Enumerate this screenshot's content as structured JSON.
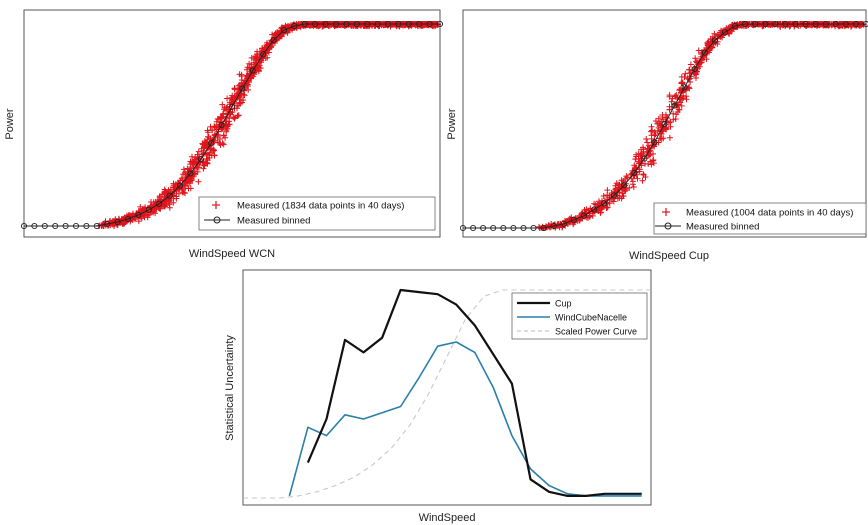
{
  "chart_data": [
    {
      "type": "scatter",
      "xlabel": "WindSpeed WCN",
      "ylabel": "Power",
      "legend_position": "bottom-right",
      "grid": false,
      "x_ticks_labeled": false,
      "y_ticks_labeled": false,
      "series": [
        {
          "name": "Measured (1834 data points in 40 days)",
          "marker": "+",
          "color": "#e0141c",
          "kind": "scatter"
        },
        {
          "name": "Measured binned",
          "marker": "o",
          "color": "#222222",
          "kind": "line"
        }
      ],
      "binned_curve": {
        "x": [
          0,
          0.5,
          1,
          1.5,
          2,
          2.5,
          3,
          3.5,
          4,
          4.5,
          5,
          5.5,
          6,
          6.5,
          7,
          7.5,
          8,
          8.5,
          9,
          9.5,
          10,
          10.5,
          11,
          11.5,
          12,
          12.5,
          13,
          13.5,
          14,
          14.5,
          15,
          15.5,
          16,
          16.5,
          17,
          17.5,
          18,
          18.5,
          19,
          19.5,
          20
        ],
        "y": [
          0,
          0,
          0,
          0,
          0,
          0,
          0,
          0,
          0.01,
          0.02,
          0.035,
          0.055,
          0.08,
          0.11,
          0.15,
          0.2,
          0.26,
          0.33,
          0.41,
          0.5,
          0.59,
          0.68,
          0.77,
          0.85,
          0.92,
          0.97,
          0.99,
          1,
          1,
          1,
          1,
          1,
          1,
          1,
          1,
          1,
          1,
          1,
          1,
          1,
          1
        ],
        "xlim": [
          0,
          20
        ],
        "ylim": [
          -0.02,
          1.04
        ]
      }
    },
    {
      "type": "scatter",
      "xlabel": "WindSpeed Cup",
      "ylabel": "Power",
      "legend_position": "bottom-right",
      "grid": false,
      "x_ticks_labeled": false,
      "y_ticks_labeled": false,
      "series": [
        {
          "name": "Measured (1004 data points in 40 days)",
          "marker": "+",
          "color": "#e0141c",
          "kind": "scatter"
        },
        {
          "name": "Measured binned",
          "marker": "o",
          "color": "#222222",
          "kind": "line"
        }
      ],
      "binned_curve": {
        "x": [
          0,
          0.5,
          1,
          1.5,
          2,
          2.5,
          3,
          3.5,
          4,
          4.5,
          5,
          5.5,
          6,
          6.5,
          7,
          7.5,
          8,
          8.5,
          9,
          9.5,
          10,
          10.5,
          11,
          11.5,
          12,
          12.5,
          13,
          13.5,
          14,
          14.5,
          15,
          15.5,
          16,
          16.5,
          17,
          17.5,
          18,
          18.5,
          19,
          19.5,
          20
        ],
        "y": [
          0,
          0,
          0,
          0,
          0,
          0,
          0,
          0,
          0,
          0.01,
          0.02,
          0.04,
          0.06,
          0.09,
          0.12,
          0.16,
          0.21,
          0.27,
          0.34,
          0.42,
          0.51,
          0.6,
          0.69,
          0.78,
          0.86,
          0.92,
          0.96,
          0.99,
          1,
          1,
          1,
          1,
          1,
          1,
          1,
          1,
          1,
          1,
          1,
          1,
          1
        ],
        "xlim": [
          0,
          20
        ],
        "ylim": [
          -0.02,
          1.04
        ]
      }
    },
    {
      "type": "line",
      "xlabel": "WindSpeed",
      "ylabel": "Statistical Uncertainty",
      "legend_position": "top-right",
      "grid": false,
      "x_ticks_labeled": false,
      "y_ticks_labeled": false,
      "xlim": [
        0,
        22
      ],
      "ylim": [
        0,
        1
      ],
      "series": [
        {
          "name": "Cup",
          "color": "#111111",
          "style": "solid",
          "x": [
            3.5,
            4.5,
            5.5,
            6.5,
            7.5,
            8.5,
            9.5,
            10.5,
            11.5,
            12.5,
            13.5,
            14.5,
            15.5,
            16.5,
            17.5,
            18.5,
            19.5,
            20.5,
            21.5
          ],
          "y": [
            0.17,
            0.38,
            0.76,
            0.7,
            0.77,
            1.0,
            0.99,
            0.98,
            0.93,
            0.83,
            0.69,
            0.55,
            0.09,
            0.03,
            0.01,
            0.01,
            0.02,
            0.02,
            0.02
          ]
        },
        {
          "name": "WindCubeNacelle",
          "color": "#2a7fab",
          "style": "solid",
          "x": [
            2.5,
            3.5,
            4.5,
            5.5,
            6.5,
            7.5,
            8.5,
            9.5,
            10.5,
            11.5,
            12.5,
            13.5,
            14.5,
            15.5,
            16.5,
            17.5,
            18.5,
            19.5,
            20.5,
            21.5
          ],
          "y": [
            0.01,
            0.34,
            0.3,
            0.4,
            0.38,
            0.41,
            0.44,
            0.58,
            0.73,
            0.75,
            0.7,
            0.53,
            0.3,
            0.14,
            0.06,
            0.02,
            0.01,
            0.01,
            0.01,
            0.01
          ]
        },
        {
          "name": "Scaled Power Curve",
          "color": "#c8c8c8",
          "style": "dashed",
          "x": [
            0,
            1,
            2,
            3,
            4,
            5,
            6,
            7,
            8,
            9,
            10,
            11,
            12,
            13,
            14,
            15,
            16,
            17,
            18,
            19,
            20,
            21,
            22
          ],
          "y": [
            0,
            0,
            0,
            0.01,
            0.03,
            0.06,
            0.1,
            0.16,
            0.24,
            0.35,
            0.5,
            0.68,
            0.86,
            0.97,
            1.0,
            1.0,
            1.0,
            1.0,
            1.0,
            1.0,
            1.0,
            1.0,
            1.0
          ]
        }
      ]
    }
  ]
}
